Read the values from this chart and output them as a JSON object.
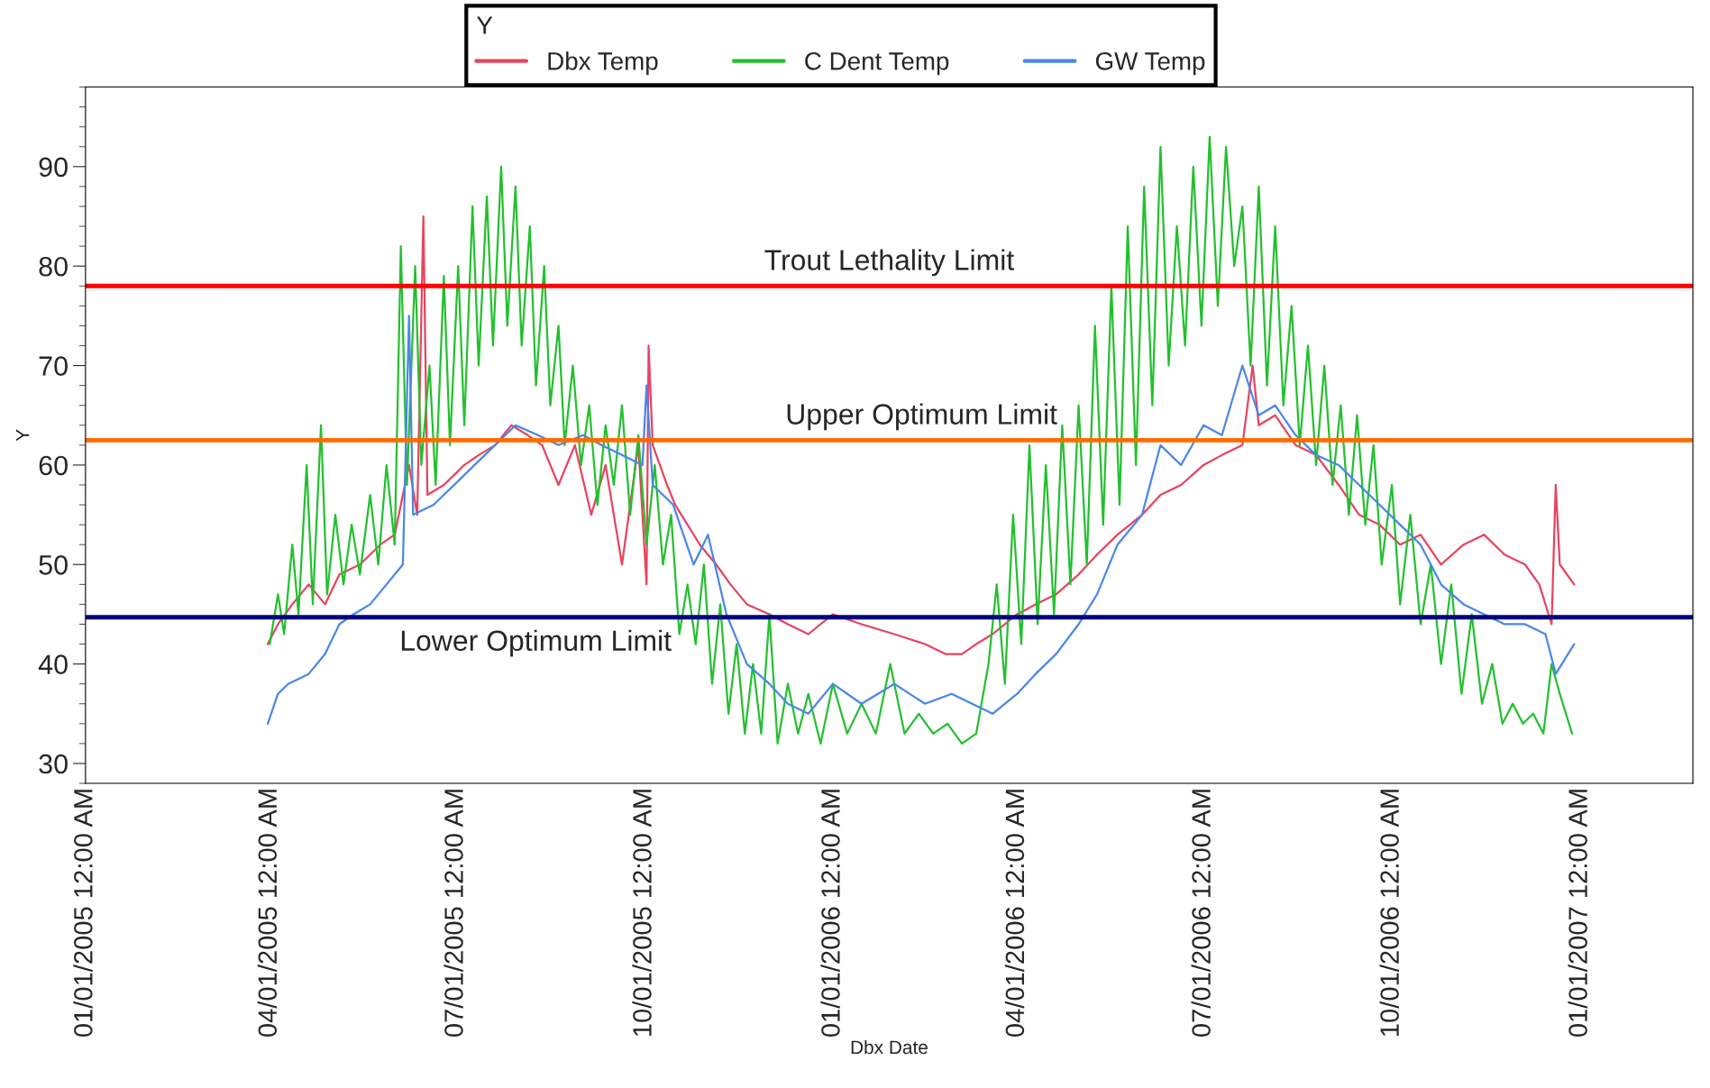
{
  "chart_data": {
    "type": "line",
    "xlabel": "Dbx Date",
    "ylabel": "Y",
    "legend_title": "Y",
    "legend": "top",
    "grid": false,
    "marker": "none",
    "line_style": "solid",
    "xlim": [
      "2005-01-01",
      "2007-02-25"
    ],
    "ylim": [
      28,
      98
    ],
    "yticks": [
      30,
      40,
      50,
      60,
      70,
      80,
      90
    ],
    "xticks": [
      {
        "value": "2005-01-01",
        "label": "01/01/2005 12:00 AM"
      },
      {
        "value": "2005-04-01",
        "label": "04/01/2005 12:00 AM"
      },
      {
        "value": "2005-07-01",
        "label": "07/01/2005 12:00 AM"
      },
      {
        "value": "2005-10-01",
        "label": "10/01/2005 12:00 AM"
      },
      {
        "value": "2006-01-01",
        "label": "01/01/2006 12:00 AM"
      },
      {
        "value": "2006-04-01",
        "label": "04/01/2006 12:00 AM"
      },
      {
        "value": "2006-07-01",
        "label": "07/01/2006 12:00 AM"
      },
      {
        "value": "2006-10-01",
        "label": "10/01/2006 12:00 AM"
      },
      {
        "value": "2007-01-01",
        "label": "01/01/2007 12:00 AM"
      }
    ],
    "ref_lines": [
      {
        "axis": "y",
        "value": 78,
        "label": "Trout Lethality Limit",
        "color": "#ff0000"
      },
      {
        "axis": "y",
        "value": 62.5,
        "label": "Upper Optimum Limit",
        "color": "#ff6a00"
      },
      {
        "axis": "y",
        "value": 44.7,
        "label": "Lower Optimum Limit",
        "color": "#000080"
      }
    ],
    "series": [
      {
        "name": "Dbx Temp",
        "color": "#e8435f",
        "x": [
          "2005-03-31",
          "2005-04-05",
          "2005-04-12",
          "2005-04-20",
          "2005-04-28",
          "2005-05-05",
          "2005-05-15",
          "2005-05-25",
          "2005-06-01",
          "2005-06-08",
          "2005-06-12",
          "2005-06-15",
          "2005-06-17",
          "2005-06-25",
          "2005-07-05",
          "2005-07-12",
          "2005-07-20",
          "2005-07-28",
          "2005-08-05",
          "2005-08-12",
          "2005-08-20",
          "2005-08-28",
          "2005-09-05",
          "2005-09-12",
          "2005-09-20",
          "2005-09-28",
          "2005-10-02",
          "2005-10-03",
          "2005-10-05",
          "2005-10-12",
          "2005-10-16",
          "2005-10-22",
          "2005-10-28",
          "2005-11-05",
          "2005-11-12",
          "2005-11-20",
          "2005-12-01",
          "2005-12-10",
          "2005-12-20",
          "2006-01-01",
          "2006-01-15",
          "2006-01-31",
          "2006-02-15",
          "2006-02-25",
          "2006-03-05",
          "2006-03-12",
          "2006-03-20",
          "2006-04-01",
          "2006-04-10",
          "2006-04-20",
          "2006-05-01",
          "2006-05-10",
          "2006-05-20",
          "2006-06-01",
          "2006-06-10",
          "2006-06-20",
          "2006-07-01",
          "2006-07-10",
          "2006-07-20",
          "2006-07-25",
          "2006-07-28",
          "2006-08-05",
          "2006-08-15",
          "2006-08-25",
          "2006-09-05",
          "2006-09-15",
          "2006-09-25",
          "2006-10-05",
          "2006-10-15",
          "2006-10-25",
          "2006-11-05",
          "2006-11-15",
          "2006-11-25",
          "2006-12-05",
          "2006-12-12",
          "2006-12-18",
          "2006-12-20",
          "2006-12-22",
          "2006-12-29"
        ],
        "values": [
          42,
          44,
          46,
          48,
          46,
          49,
          50,
          52,
          53,
          60,
          55,
          85,
          57,
          58,
          60,
          61,
          62,
          64,
          63,
          62,
          58,
          62,
          55,
          60,
          50,
          62,
          48,
          72,
          62,
          58,
          56,
          54,
          52,
          50,
          48,
          46,
          45,
          44,
          43,
          45,
          44,
          43,
          42,
          41,
          41,
          42,
          43,
          45,
          46,
          47,
          49,
          51,
          53,
          55,
          57,
          58,
          60,
          61,
          62,
          70,
          64,
          65,
          62,
          61,
          58,
          55,
          54,
          52,
          53,
          50,
          52,
          53,
          51,
          50,
          48,
          44,
          58,
          50,
          48
        ]
      },
      {
        "name": "C Dent Temp",
        "color": "#22c02e",
        "x": [
          "2005-04-01",
          "2005-04-05",
          "2005-04-08",
          "2005-04-12",
          "2005-04-15",
          "2005-04-19",
          "2005-04-22",
          "2005-04-26",
          "2005-04-29",
          "2005-05-03",
          "2005-05-07",
          "2005-05-11",
          "2005-05-15",
          "2005-05-20",
          "2005-05-24",
          "2005-05-28",
          "2005-06-01",
          "2005-06-04",
          "2005-06-07",
          "2005-06-11",
          "2005-06-14",
          "2005-06-18",
          "2005-06-21",
          "2005-06-25",
          "2005-06-28",
          "2005-07-02",
          "2005-07-05",
          "2005-07-09",
          "2005-07-12",
          "2005-07-16",
          "2005-07-19",
          "2005-07-23",
          "2005-07-26",
          "2005-07-30",
          "2005-08-02",
          "2005-08-06",
          "2005-08-09",
          "2005-08-13",
          "2005-08-16",
          "2005-08-20",
          "2005-08-23",
          "2005-08-27",
          "2005-08-31",
          "2005-09-04",
          "2005-09-08",
          "2005-09-12",
          "2005-09-16",
          "2005-09-20",
          "2005-09-24",
          "2005-09-28",
          "2005-10-02",
          "2005-10-06",
          "2005-10-10",
          "2005-10-14",
          "2005-10-18",
          "2005-10-22",
          "2005-10-26",
          "2005-10-30",
          "2005-11-03",
          "2005-11-07",
          "2005-11-11",
          "2005-11-15",
          "2005-11-19",
          "2005-11-23",
          "2005-11-27",
          "2005-12-01",
          "2005-12-05",
          "2005-12-10",
          "2005-12-15",
          "2005-12-20",
          "2005-12-26",
          "2006-01-01",
          "2006-01-08",
          "2006-01-15",
          "2006-01-22",
          "2006-01-29",
          "2006-02-05",
          "2006-02-12",
          "2006-02-19",
          "2006-02-26",
          "2006-03-05",
          "2006-03-12",
          "2006-03-18",
          "2006-03-22",
          "2006-03-26",
          "2006-03-30",
          "2006-04-03",
          "2006-04-07",
          "2006-04-11",
          "2006-04-15",
          "2006-04-19",
          "2006-04-23",
          "2006-04-27",
          "2006-05-01",
          "2006-05-05",
          "2006-05-09",
          "2006-05-13",
          "2006-05-17",
          "2006-05-21",
          "2006-05-25",
          "2006-05-29",
          "2006-06-02",
          "2006-06-06",
          "2006-06-10",
          "2006-06-14",
          "2006-06-18",
          "2006-06-22",
          "2006-06-26",
          "2006-06-30",
          "2006-07-04",
          "2006-07-08",
          "2006-07-12",
          "2006-07-16",
          "2006-07-20",
          "2006-07-24",
          "2006-07-28",
          "2006-08-01",
          "2006-08-05",
          "2006-08-09",
          "2006-08-13",
          "2006-08-17",
          "2006-08-21",
          "2006-08-25",
          "2006-08-29",
          "2006-09-02",
          "2006-09-06",
          "2006-09-10",
          "2006-09-14",
          "2006-09-18",
          "2006-09-22",
          "2006-09-26",
          "2006-10-01",
          "2006-10-05",
          "2006-10-10",
          "2006-10-15",
          "2006-10-20",
          "2006-10-25",
          "2006-10-30",
          "2006-11-04",
          "2006-11-09",
          "2006-11-14",
          "2006-11-19",
          "2006-11-24",
          "2006-11-29",
          "2006-12-04",
          "2006-12-09",
          "2006-12-14",
          "2006-12-18",
          "2006-12-22",
          "2006-12-28"
        ],
        "values": [
          42,
          47,
          43,
          52,
          45,
          60,
          46,
          64,
          47,
          55,
          48,
          54,
          49,
          57,
          50,
          60,
          52,
          82,
          58,
          80,
          60,
          70,
          58,
          79,
          62,
          80,
          64,
          86,
          70,
          87,
          72,
          90,
          74,
          88,
          72,
          84,
          68,
          80,
          66,
          74,
          62,
          70,
          60,
          66,
          56,
          64,
          58,
          66,
          55,
          63,
          52,
          60,
          50,
          55,
          43,
          48,
          42,
          50,
          38,
          46,
          35,
          42,
          33,
          40,
          33,
          45,
          32,
          38,
          33,
          37,
          32,
          38,
          33,
          36,
          33,
          40,
          33,
          35,
          33,
          34,
          32,
          33,
          40,
          48,
          38,
          55,
          42,
          62,
          44,
          60,
          45,
          64,
          48,
          66,
          50,
          74,
          54,
          78,
          56,
          84,
          60,
          88,
          66,
          92,
          70,
          84,
          72,
          90,
          74,
          93,
          76,
          92,
          80,
          86,
          70,
          88,
          68,
          84,
          66,
          76,
          62,
          72,
          60,
          70,
          58,
          66,
          55,
          65,
          54,
          62,
          50,
          58,
          46,
          55,
          44,
          50,
          40,
          48,
          37,
          45,
          36,
          40,
          34,
          36,
          34,
          35,
          33,
          40,
          37,
          33
        ]
      },
      {
        "name": "GW Temp",
        "color": "#4a86e8",
        "x": [
          "2005-03-31",
          "2005-04-05",
          "2005-04-10",
          "2005-04-20",
          "2005-04-28",
          "2005-05-05",
          "2005-05-12",
          "2005-05-20",
          "2005-05-28",
          "2005-06-05",
          "2005-06-08",
          "2005-06-10",
          "2005-06-20",
          "2005-06-30",
          "2005-07-10",
          "2005-07-20",
          "2005-07-30",
          "2005-08-10",
          "2005-08-20",
          "2005-09-01",
          "2005-09-10",
          "2005-09-20",
          "2005-09-30",
          "2005-10-02",
          "2005-10-05",
          "2005-10-15",
          "2005-10-25",
          "2005-11-01",
          "2005-11-10",
          "2005-11-20",
          "2005-12-01",
          "2005-12-10",
          "2005-12-20",
          "2006-01-01",
          "2006-01-15",
          "2006-01-31",
          "2006-02-15",
          "2006-02-28",
          "2006-03-10",
          "2006-03-20",
          "2006-04-01",
          "2006-04-10",
          "2006-04-20",
          "2006-05-01",
          "2006-05-10",
          "2006-05-20",
          "2006-06-01",
          "2006-06-10",
          "2006-06-20",
          "2006-07-01",
          "2006-07-10",
          "2006-07-20",
          "2006-07-28",
          "2006-08-05",
          "2006-08-15",
          "2006-08-25",
          "2006-09-05",
          "2006-09-15",
          "2006-09-25",
          "2006-10-05",
          "2006-10-15",
          "2006-10-25",
          "2006-11-05",
          "2006-11-15",
          "2006-11-25",
          "2006-12-05",
          "2006-12-15",
          "2006-12-20",
          "2006-12-29"
        ],
        "values": [
          34,
          37,
          38,
          39,
          41,
          44,
          45,
          46,
          48,
          50,
          75,
          55,
          56,
          58,
          60,
          62,
          64,
          63,
          62,
          63,
          62,
          61,
          60,
          68,
          58,
          56,
          50,
          53,
          45,
          40,
          38,
          36,
          35,
          38,
          36,
          38,
          36,
          37,
          36,
          35,
          37,
          39,
          41,
          44,
          47,
          52,
          55,
          62,
          60,
          64,
          63,
          70,
          65,
          66,
          63,
          61,
          60,
          58,
          56,
          54,
          52,
          48,
          46,
          45,
          44,
          44,
          43,
          39,
          42
        ]
      }
    ]
  }
}
